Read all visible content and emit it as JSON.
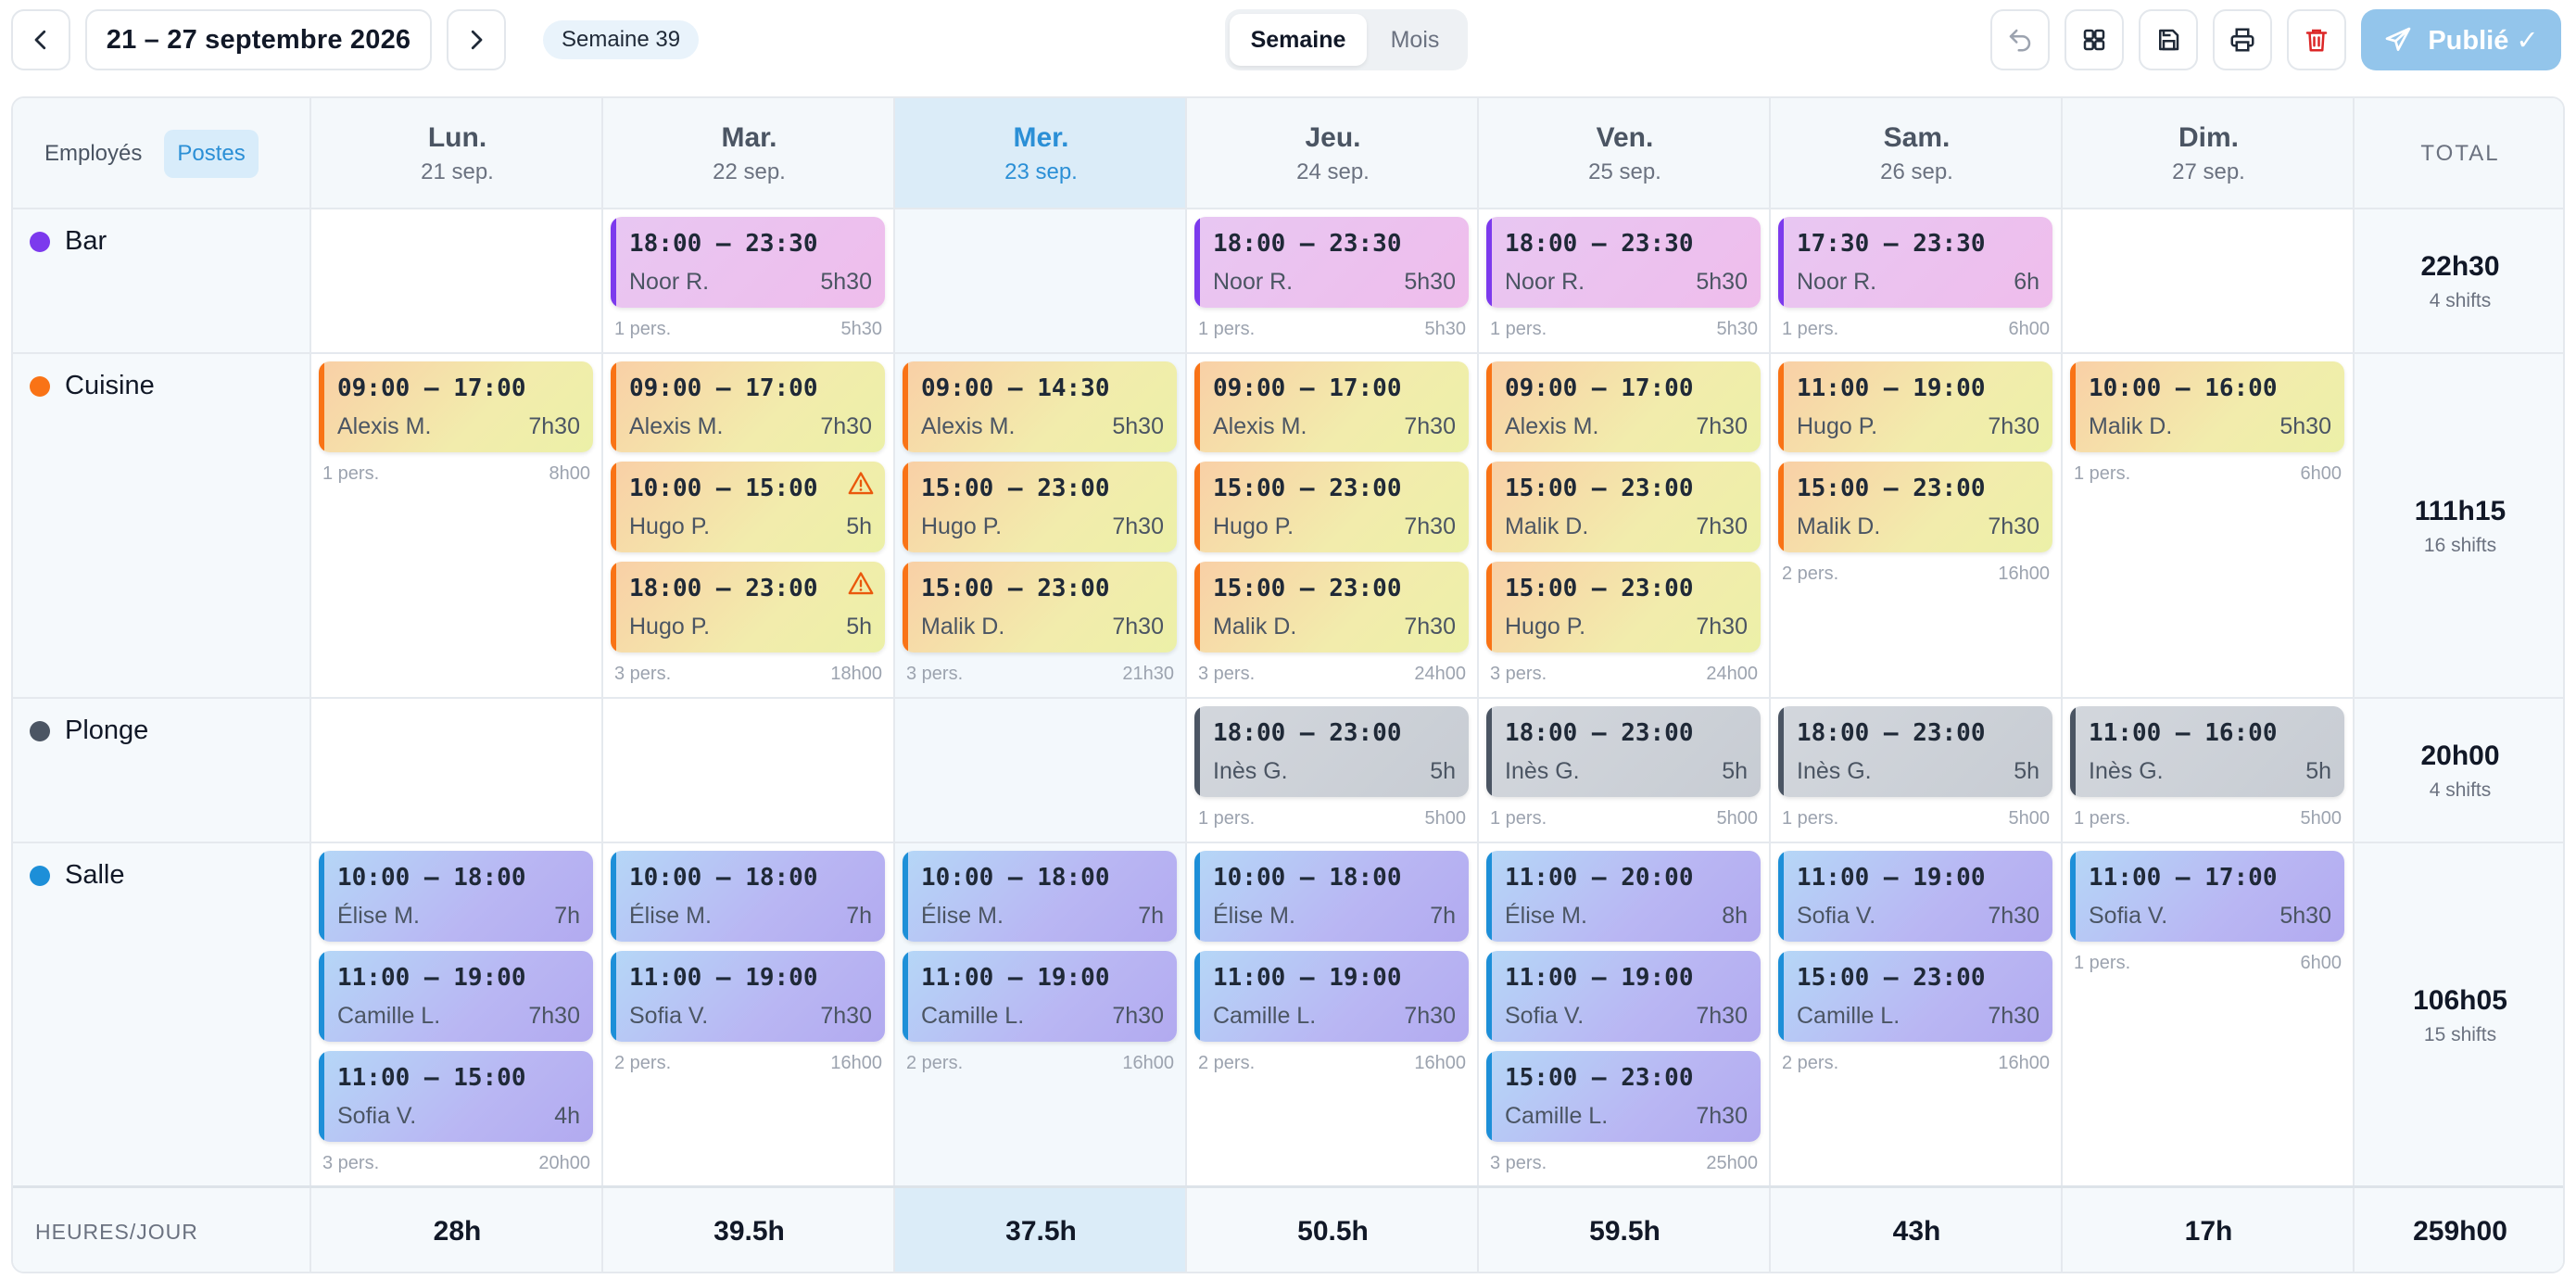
{
  "toolbar": {
    "date_range": "21 – 27 septembre 2026",
    "week_badge": "Semaine 39",
    "view_week": "Semaine",
    "view_month": "Mois",
    "publish_label": "Publié ✓"
  },
  "view_toggle": {
    "employees": "Employés",
    "positions": "Postes"
  },
  "total_header": "TOTAL",
  "days": [
    {
      "name": "Lun.",
      "date": "21 sep.",
      "total": "28h"
    },
    {
      "name": "Mar.",
      "date": "22 sep.",
      "total": "39.5h"
    },
    {
      "name": "Mer.",
      "date": "23 sep.",
      "total": "37.5h",
      "today": true
    },
    {
      "name": "Jeu.",
      "date": "24 sep.",
      "total": "50.5h"
    },
    {
      "name": "Ven.",
      "date": "25 sep.",
      "total": "59.5h"
    },
    {
      "name": "Sam.",
      "date": "26 sep.",
      "total": "43h"
    },
    {
      "name": "Dim.",
      "date": "27 sep.",
      "total": "17h"
    }
  ],
  "hours_per_day_label": "HEURES/JOUR",
  "grand_total": "259h00",
  "colors": {
    "bar": "#7c3aed",
    "cuisine": "#f97316",
    "plonge": "#4b5563",
    "salle": "#1d8fd8",
    "today": "#2b8fd6"
  },
  "positions": [
    {
      "key": "bar",
      "name": "Bar",
      "total_hours": "22h30",
      "total_shifts": "4 shifts",
      "cells": [
        {
          "shifts": []
        },
        {
          "shifts": [
            {
              "time": "18:00 – 23:30",
              "name": "Noor R.",
              "dur": "5h30"
            }
          ],
          "people": "1 pers.",
          "hours": "5h30"
        },
        {
          "shifts": []
        },
        {
          "shifts": [
            {
              "time": "18:00 – 23:30",
              "name": "Noor R.",
              "dur": "5h30"
            }
          ],
          "people": "1 pers.",
          "hours": "5h30"
        },
        {
          "shifts": [
            {
              "time": "18:00 – 23:30",
              "name": "Noor R.",
              "dur": "5h30"
            }
          ],
          "people": "1 pers.",
          "hours": "5h30"
        },
        {
          "shifts": [
            {
              "time": "17:30 – 23:30",
              "name": "Noor R.",
              "dur": "6h"
            }
          ],
          "people": "1 pers.",
          "hours": "6h00"
        },
        {
          "shifts": []
        }
      ]
    },
    {
      "key": "cuisine",
      "name": "Cuisine",
      "total_hours": "111h15",
      "total_shifts": "16 shifts",
      "cells": [
        {
          "shifts": [
            {
              "time": "09:00 – 17:00",
              "name": "Alexis M.",
              "dur": "7h30"
            }
          ],
          "people": "1 pers.",
          "hours": "8h00"
        },
        {
          "shifts": [
            {
              "time": "09:00 – 17:00",
              "name": "Alexis M.",
              "dur": "7h30"
            },
            {
              "time": "10:00 – 15:00",
              "name": "Hugo P.",
              "dur": "5h",
              "warning": true
            },
            {
              "time": "18:00 – 23:00",
              "name": "Hugo P.",
              "dur": "5h",
              "warning": true
            }
          ],
          "people": "3 pers.",
          "hours": "18h00"
        },
        {
          "shifts": [
            {
              "time": "09:00 – 14:30",
              "name": "Alexis M.",
              "dur": "5h30"
            },
            {
              "time": "15:00 – 23:00",
              "name": "Hugo P.",
              "dur": "7h30"
            },
            {
              "time": "15:00 – 23:00",
              "name": "Malik D.",
              "dur": "7h30"
            }
          ],
          "people": "3 pers.",
          "hours": "21h30"
        },
        {
          "shifts": [
            {
              "time": "09:00 – 17:00",
              "name": "Alexis M.",
              "dur": "7h30"
            },
            {
              "time": "15:00 – 23:00",
              "name": "Hugo P.",
              "dur": "7h30"
            },
            {
              "time": "15:00 – 23:00",
              "name": "Malik D.",
              "dur": "7h30"
            }
          ],
          "people": "3 pers.",
          "hours": "24h00"
        },
        {
          "shifts": [
            {
              "time": "09:00 – 17:00",
              "name": "Alexis M.",
              "dur": "7h30"
            },
            {
              "time": "15:00 – 23:00",
              "name": "Malik D.",
              "dur": "7h30"
            },
            {
              "time": "15:00 – 23:00",
              "name": "Hugo P.",
              "dur": "7h30"
            }
          ],
          "people": "3 pers.",
          "hours": "24h00"
        },
        {
          "shifts": [
            {
              "time": "11:00 – 19:00",
              "name": "Hugo P.",
              "dur": "7h30"
            },
            {
              "time": "15:00 – 23:00",
              "name": "Malik D.",
              "dur": "7h30"
            }
          ],
          "people": "2 pers.",
          "hours": "16h00"
        },
        {
          "shifts": [
            {
              "time": "10:00 – 16:00",
              "name": "Malik D.",
              "dur": "5h30"
            }
          ],
          "people": "1 pers.",
          "hours": "6h00"
        }
      ]
    },
    {
      "key": "plonge",
      "name": "Plonge",
      "total_hours": "20h00",
      "total_shifts": "4 shifts",
      "cells": [
        {
          "shifts": []
        },
        {
          "shifts": []
        },
        {
          "shifts": []
        },
        {
          "shifts": [
            {
              "time": "18:00 – 23:00",
              "name": "Inès G.",
              "dur": "5h"
            }
          ],
          "people": "1 pers.",
          "hours": "5h00"
        },
        {
          "shifts": [
            {
              "time": "18:00 – 23:00",
              "name": "Inès G.",
              "dur": "5h"
            }
          ],
          "people": "1 pers.",
          "hours": "5h00"
        },
        {
          "shifts": [
            {
              "time": "18:00 – 23:00",
              "name": "Inès G.",
              "dur": "5h"
            }
          ],
          "people": "1 pers.",
          "hours": "5h00"
        },
        {
          "shifts": [
            {
              "time": "11:00 – 16:00",
              "name": "Inès G.",
              "dur": "5h"
            }
          ],
          "people": "1 pers.",
          "hours": "5h00"
        }
      ]
    },
    {
      "key": "salle",
      "name": "Salle",
      "total_hours": "106h05",
      "total_shifts": "15 shifts",
      "cells": [
        {
          "shifts": [
            {
              "time": "10:00 – 18:00",
              "name": "Élise M.",
              "dur": "7h"
            },
            {
              "time": "11:00 – 19:00",
              "name": "Camille L.",
              "dur": "7h30"
            },
            {
              "time": "11:00 – 15:00",
              "name": "Sofia V.",
              "dur": "4h"
            }
          ],
          "people": "3 pers.",
          "hours": "20h00"
        },
        {
          "shifts": [
            {
              "time": "10:00 – 18:00",
              "name": "Élise M.",
              "dur": "7h"
            },
            {
              "time": "11:00 – 19:00",
              "name": "Sofia V.",
              "dur": "7h30"
            }
          ],
          "people": "2 pers.",
          "hours": "16h00"
        },
        {
          "shifts": [
            {
              "time": "10:00 – 18:00",
              "name": "Élise M.",
              "dur": "7h"
            },
            {
              "time": "11:00 – 19:00",
              "name": "Camille L.",
              "dur": "7h30"
            }
          ],
          "people": "2 pers.",
          "hours": "16h00"
        },
        {
          "shifts": [
            {
              "time": "10:00 – 18:00",
              "name": "Élise M.",
              "dur": "7h"
            },
            {
              "time": "11:00 – 19:00",
              "name": "Camille L.",
              "dur": "7h30"
            }
          ],
          "people": "2 pers.",
          "hours": "16h00"
        },
        {
          "shifts": [
            {
              "time": "11:00 – 20:00",
              "name": "Élise M.",
              "dur": "8h"
            },
            {
              "time": "11:00 – 19:00",
              "name": "Sofia V.",
              "dur": "7h30"
            },
            {
              "time": "15:00 – 23:00",
              "name": "Camille L.",
              "dur": "7h30"
            }
          ],
          "people": "3 pers.",
          "hours": "25h00"
        },
        {
          "shifts": [
            {
              "time": "11:00 – 19:00",
              "name": "Sofia V.",
              "dur": "7h30"
            },
            {
              "time": "15:00 – 23:00",
              "name": "Camille L.",
              "dur": "7h30"
            }
          ],
          "people": "2 pers.",
          "hours": "16h00"
        },
        {
          "shifts": [
            {
              "time": "11:00 – 17:00",
              "name": "Sofia V.",
              "dur": "5h30"
            }
          ],
          "people": "1 pers.",
          "hours": "6h00"
        }
      ]
    }
  ]
}
